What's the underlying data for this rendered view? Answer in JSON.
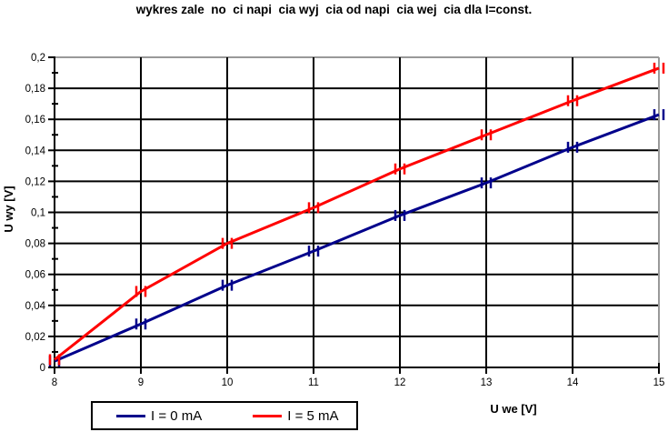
{
  "title": "wykres zale  no  ci napi  cia wyj  cia od napi  cia wej  cia dla I=const.",
  "colors": {
    "series_i0": "#00008B",
    "series_i5": "#FF0000",
    "gridline": "#000000",
    "plot_border": "#999999",
    "axis": "#000000",
    "background": "#FFFFFF"
  },
  "chart_data": {
    "type": "line",
    "title": "wykres zale  no  ci napi  cia wyj  cia od napi  cia wej  cia dla I=const.",
    "xlabel": "U we [V]",
    "ylabel": "U wy [V]",
    "x": [
      8,
      9,
      10,
      11,
      12,
      13,
      14,
      15
    ],
    "series": [
      {
        "name": "I = 0 mA",
        "color": "#00008B",
        "values": [
          0.004,
          0.028,
          0.053,
          0.075,
          0.098,
          0.119,
          0.142,
          0.163
        ]
      },
      {
        "name": "I = 5 mA",
        "color": "#FF0000",
        "values": [
          0.005,
          0.049,
          0.08,
          0.103,
          0.128,
          0.15,
          0.172,
          0.193
        ]
      }
    ],
    "xlim": [
      8,
      15
    ],
    "ylim": [
      0,
      0.2
    ],
    "x_tick_labels": [
      "8",
      "9",
      "10",
      "11",
      "12",
      "13",
      "14",
      "15"
    ],
    "y_tick_labels": [
      "0",
      "0,02",
      "0,04",
      "0,06",
      "0,08",
      "0,1",
      "0,12",
      "0,14",
      "0,16",
      "0,18",
      "0,2"
    ],
    "y_tick_step": 0.02,
    "y_minor_tick_step": 0.01,
    "decimal_separator": ",",
    "grid": true,
    "legend_position": "bottom-left",
    "marker": "error-bar-caps"
  },
  "legend": {
    "items": [
      {
        "label": "I = 0 mA",
        "color": "#00008B"
      },
      {
        "label": "I = 5 mA",
        "color": "#FF0000"
      }
    ]
  }
}
